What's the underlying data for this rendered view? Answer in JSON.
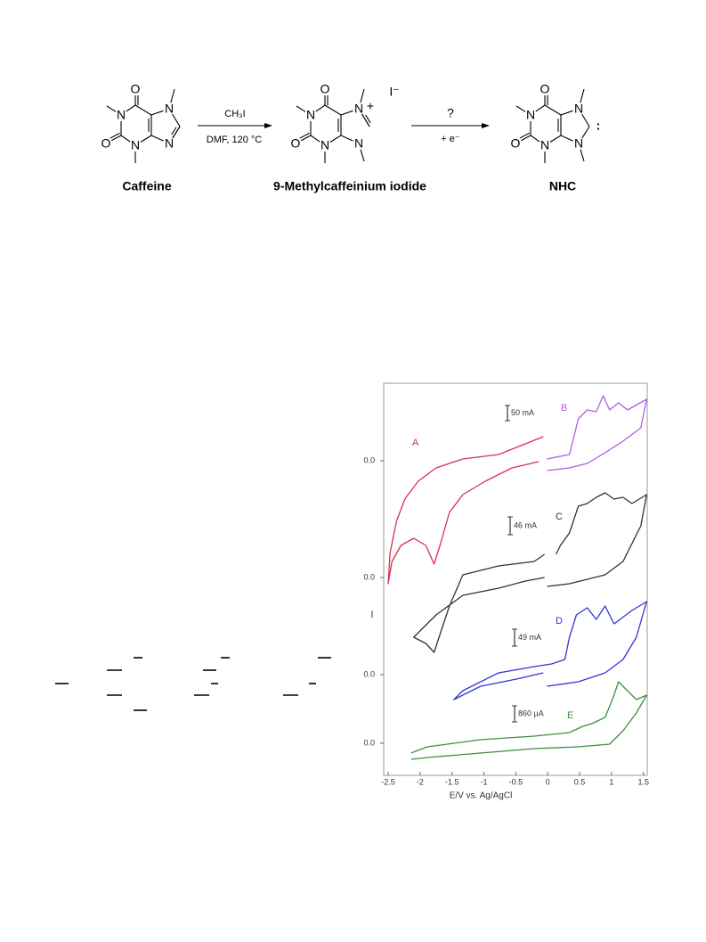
{
  "scheme": {
    "molecules": [
      {
        "name": "Caffeine",
        "atoms": [
          "O",
          "N",
          "O",
          "N",
          "N",
          "N"
        ]
      },
      {
        "name": "9-Methylcaffeinium iodide",
        "atoms": [
          "O",
          "N",
          "O",
          "N",
          "N",
          "N"
        ],
        "charge": "+"
      },
      {
        "name": "NHC",
        "atoms": [
          "O",
          "N",
          "O",
          "N",
          "N",
          "N"
        ],
        "carbene": ":"
      }
    ],
    "reagent": "CH₃I",
    "conditions": "DMF, 120 °C",
    "counterion": "I⁻",
    "step2_top": "?",
    "step2_bottom": "+ e⁻"
  },
  "chart_data": {
    "type": "line",
    "x_label": "E/V vs. Ag/AgCl",
    "y_label": "I",
    "xlim": [
      -2.57,
      1.56
    ],
    "xticks": [
      -2.5,
      -2,
      -1.5,
      -1,
      -0.5,
      0,
      0.5,
      1,
      1.5
    ],
    "ylim": [
      0,
      44
    ],
    "yticks": [
      {
        "value": 35.3,
        "label": "0.0"
      },
      {
        "value": 22.2,
        "label": "0.0"
      },
      {
        "value": 11.3,
        "label": "0.0"
      },
      {
        "value": 3.6,
        "label": "0.0"
      }
    ],
    "annotations": [
      "50 mA",
      "46 mA",
      "49 mA",
      "860 µA"
    ],
    "series": [
      {
        "name": "A",
        "color": "#d9304f",
        "x": [
          -0.07,
          -0.77,
          -1.33,
          -1.75,
          -2.03,
          -2.24,
          -2.37,
          -2.47,
          -2.5,
          -2.44,
          -2.3,
          -2.1,
          -1.91,
          -1.78,
          -1.68,
          -1.54,
          -1.33,
          -0.98,
          -0.56,
          -0.14
        ],
        "values": [
          38.0,
          36.0,
          35.5,
          34.5,
          33.0,
          31.0,
          28.5,
          25.0,
          21.5,
          24.0,
          25.8,
          26.6,
          25.8,
          23.7,
          26.0,
          29.5,
          31.5,
          33.0,
          34.5,
          35.2
        ]
      },
      {
        "name": "B",
        "color": "#b15ee0",
        "x": [
          -0.01,
          0.34,
          0.41,
          0.48,
          0.62,
          0.76,
          0.87,
          0.97,
          1.11,
          1.25,
          1.55,
          1.46,
          1.18,
          0.9,
          0.62,
          0.34,
          -0.01
        ],
        "values": [
          35.5,
          36.0,
          38.0,
          40.0,
          41.0,
          40.8,
          42.6,
          41.0,
          41.8,
          41.0,
          42.2,
          39.0,
          37.5,
          36.2,
          35.0,
          34.5,
          34.2
        ]
      },
      {
        "name": "C",
        "color": "#333333",
        "x": [
          -0.05,
          -0.35,
          -0.77,
          -1.33,
          -1.75,
          -1.96,
          -2.1,
          -1.91,
          -1.78,
          -1.68,
          -1.54,
          -1.33,
          -0.77,
          -0.21,
          -0.05,
          null,
          -0.01,
          0.34,
          0.62,
          0.9,
          1.18,
          1.46,
          1.55,
          1.32,
          1.18,
          1.04,
          0.9,
          0.76,
          0.62,
          0.48,
          0.34,
          0.2,
          0.13
        ],
        "values": [
          22.2,
          21.8,
          21.0,
          20.2,
          18.0,
          16.5,
          15.5,
          14.8,
          13.8,
          16.0,
          19.0,
          22.5,
          23.5,
          24.0,
          24.8,
          null,
          21.2,
          21.5,
          22.0,
          22.5,
          24.0,
          28.0,
          31.5,
          30.5,
          31.2,
          31.0,
          31.7,
          31.2,
          30.5,
          30.2,
          27.2,
          25.8,
          24.8
        ]
      },
      {
        "name": "D",
        "color": "#3434d8",
        "x": [
          -0.07,
          -0.49,
          -1.05,
          -1.47,
          -1.33,
          -0.77,
          -0.21,
          0.06,
          0.27,
          0.34,
          0.45,
          0.62,
          0.76,
          0.9,
          1.04,
          1.32,
          1.55,
          1.39,
          1.18,
          0.9,
          0.48,
          -0.01
        ],
        "values": [
          11.5,
          10.8,
          10.0,
          8.5,
          9.5,
          11.5,
          12.2,
          12.5,
          13.0,
          15.5,
          18.0,
          18.8,
          17.5,
          19.0,
          17.0,
          18.5,
          19.5,
          15.5,
          13.0,
          11.5,
          10.5,
          10.0
        ]
      },
      {
        "name": "E",
        "color": "#3f8f3f",
        "x": [
          -2.14,
          -1.89,
          -1.05,
          -0.21,
          0.48,
          0.97,
          1.18,
          1.39,
          1.55,
          1.39,
          1.25,
          1.11,
          1.04,
          0.9,
          0.69,
          0.55,
          0.34,
          -0.21,
          -1.05,
          -1.89,
          -2.14
        ],
        "values": [
          1.8,
          2.0,
          2.5,
          3.0,
          3.2,
          3.5,
          5.0,
          7.0,
          9.0,
          8.5,
          9.5,
          10.5,
          9.0,
          6.5,
          5.8,
          5.5,
          4.8,
          4.4,
          4.0,
          3.2,
          2.5
        ]
      }
    ]
  }
}
